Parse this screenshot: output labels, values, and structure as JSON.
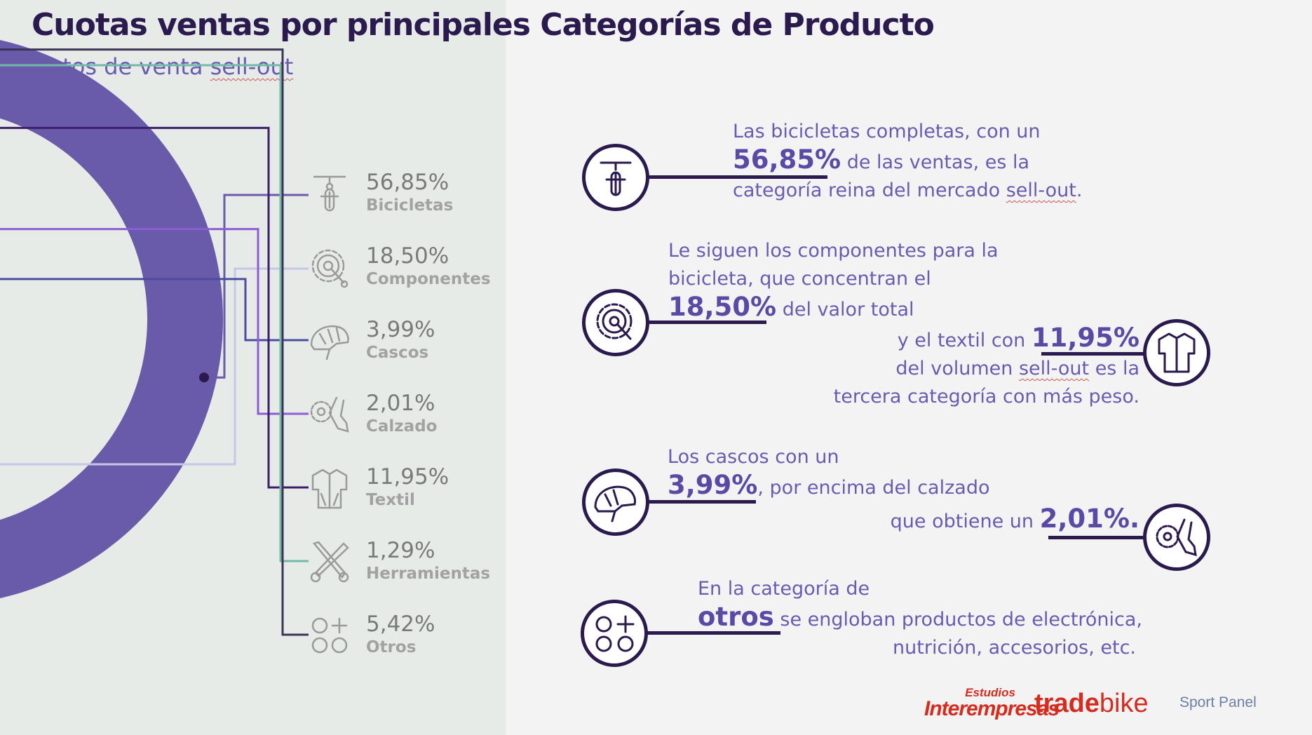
{
  "title": "Cuotas ventas por principales Categorías de Producto",
  "subtitle": {
    "text": "Datos de venta",
    "underlined": "sell-out"
  },
  "colors": {
    "Bicicletas": "#6a5aaa",
    "Componentes": "#c8c6e6",
    "Cascos": "#4a4da0",
    "Calzado": "#8f5cd6",
    "Textil": "#3c1e6a",
    "Herramientas": "#74b8a8",
    "Otros": "#3b3457",
    "accent": "#5a4aa5",
    "dark": "#2a1a4e"
  },
  "chart_data": {
    "type": "pie",
    "categories": [
      "Bicicletas",
      "Componentes",
      "Cascos",
      "Calzado",
      "Textil",
      "Herramientas",
      "Otros"
    ],
    "values": [
      56.85,
      18.5,
      3.99,
      2.01,
      11.95,
      1.29,
      5.42
    ],
    "value_labels": [
      "56,85%",
      "18,50%",
      "3,99%",
      "2,01%",
      "11,95%",
      "1,29%",
      "5,42%"
    ],
    "legend": "right"
  },
  "legend": [
    {
      "value": "56,85%",
      "label": "Bicicletas",
      "icon": "bicycle-icon"
    },
    {
      "value": "18,50%",
      "label": "Componentes",
      "icon": "gear-icon"
    },
    {
      "value": "3,99%",
      "label": "Cascos",
      "icon": "helmet-icon"
    },
    {
      "value": "2,01%",
      "label": "Calzado",
      "icon": "shoe-icon"
    },
    {
      "value": "11,95%",
      "label": "Textil",
      "icon": "jersey-icon"
    },
    {
      "value": "1,29%",
      "label": "Herramientas",
      "icon": "tools-icon"
    },
    {
      "value": "5,42%",
      "label": "Otros",
      "icon": "others-icon"
    }
  ],
  "blocks": {
    "bicicletas": {
      "line1": "Las bicicletas completas, con un",
      "big": "56,85%",
      "line2_rest": " de las ventas, es la",
      "line3_pre": "categoría reina del mercado ",
      "line3_ul": "sell-out",
      "line3_post": "."
    },
    "componentes": {
      "line1": "Le siguen los componentes para la",
      "line2": "bicicleta, que concentran el",
      "big": "18,50%",
      "line3_rest": " del valor total"
    },
    "textil": {
      "line1_pre": "y el textil con ",
      "big": "11,95%",
      "line2_pre": "del volumen ",
      "line2_ul": "sell-out",
      "line2_post": " es la",
      "line3": "tercera categoría con más peso."
    },
    "cascos": {
      "line1": "Los cascos con un",
      "big": "3,99%",
      "line2_rest": ",  por encima del calzado"
    },
    "calzado": {
      "line1_pre": "que obtiene un ",
      "big": "2,01%."
    },
    "otros": {
      "line1": "En la categoría de",
      "big": "otros",
      "line2_rest": " se engloban productos de electrónica,",
      "line3": "nutrición, accesorios, etc."
    }
  },
  "logos": {
    "interempresas_top": "Estudios",
    "interempresas_main": "Interempresas",
    "tradebike_a": "trade",
    "tradebike_b": "bike",
    "sportpanel": "Sport Panel"
  }
}
